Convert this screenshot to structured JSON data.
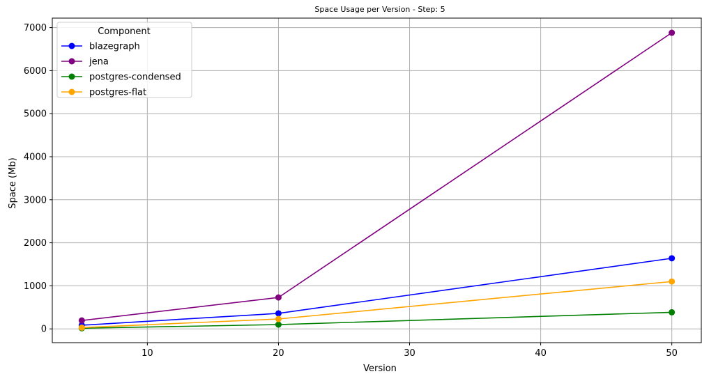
{
  "chart_data": {
    "type": "line",
    "title": "Space Usage per Version - Step: 5",
    "xlabel": "Version",
    "ylabel": "Space (Mb)",
    "xlim": [
      2.75,
      52.25
    ],
    "ylim": [
      -320,
      7220
    ],
    "xticks": [
      10,
      20,
      30,
      40,
      50
    ],
    "yticks": [
      0,
      1000,
      2000,
      3000,
      4000,
      5000,
      6000,
      7000
    ],
    "grid": true,
    "legend": {
      "title": "Component",
      "placement": "top-left"
    },
    "x": [
      5,
      20,
      50
    ],
    "series": [
      {
        "name": "blazegraph",
        "color": "#0000ff",
        "values": [
          85,
          360,
          1640
        ]
      },
      {
        "name": "jena",
        "color": "#800080",
        "values": [
          195,
          730,
          6880
        ]
      },
      {
        "name": "postgres-condensed",
        "color": "#008000",
        "values": [
          15,
          100,
          385
        ]
      },
      {
        "name": "postgres-flat",
        "color": "#ffa500",
        "values": [
          30,
          230,
          1100
        ]
      }
    ]
  }
}
